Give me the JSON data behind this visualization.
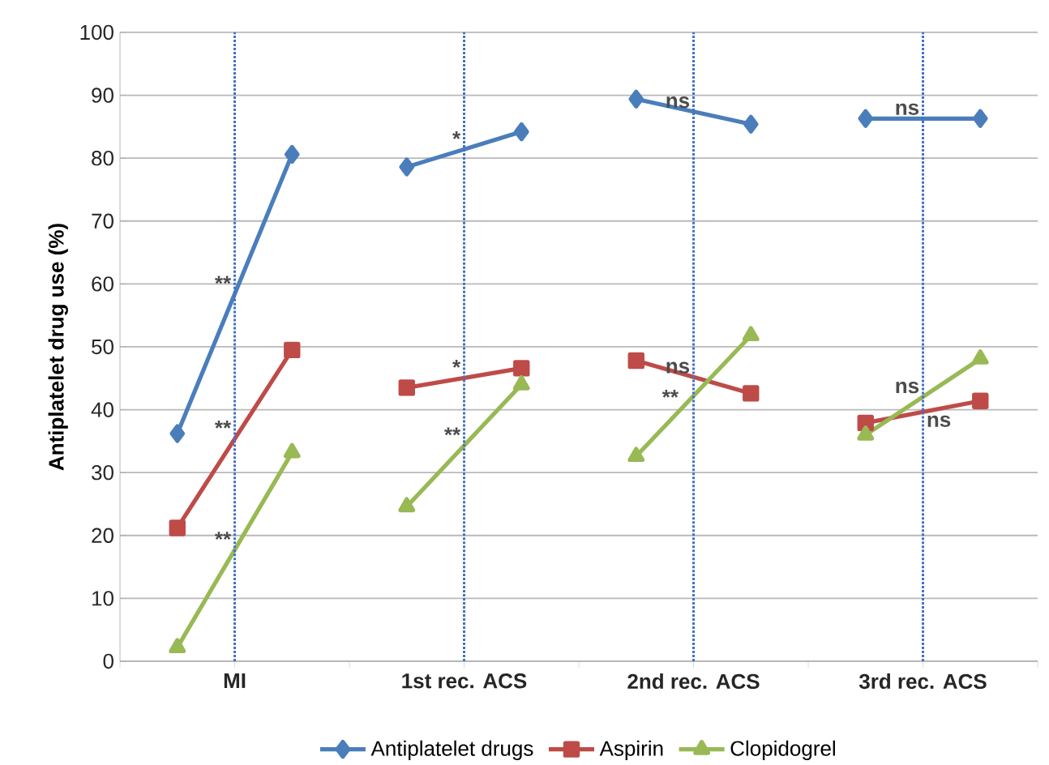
{
  "chart_data": {
    "type": "line",
    "ylabel": "Antiplatelet drug use (%)",
    "xlim": [
      -0.5,
      3.5
    ],
    "xticks": [
      {
        "value": -0.5,
        "label": null
      },
      {
        "value": 0,
        "label": "MI"
      },
      {
        "value": 0.5,
        "label": null
      },
      {
        "value": 1,
        "label": "1st rec. ACS"
      },
      {
        "value": 1.5,
        "label": null
      },
      {
        "value": 2,
        "label": "2nd rec. ACS"
      },
      {
        "value": 2.5,
        "label": null
      },
      {
        "value": 3,
        "label": "3rd rec. ACS"
      },
      {
        "value": 3.5,
        "label": null
      }
    ],
    "ylim": [
      0,
      100
    ],
    "yticks": [
      0,
      10,
      20,
      30,
      40,
      50,
      60,
      70,
      80,
      90,
      100
    ],
    "grid": "y",
    "legend": "bottom",
    "line_style": "solid",
    "series": [
      {
        "name": "Antiplatelet drugs",
        "color": "#4a7ebb",
        "marker": "diamond",
        "x": [
          -0.25,
          0.25,
          0.5,
          0.75,
          1.25,
          1.5,
          1.75,
          2.25,
          2.5,
          2.75,
          3.25
        ],
        "values": [
          36.2,
          80.6,
          null,
          78.6,
          84.2,
          null,
          89.4,
          85.4,
          null,
          86.3,
          86.3
        ]
      },
      {
        "name": "Aspirin",
        "color": "#be4b48",
        "marker": "square",
        "x": [
          -0.25,
          0.25,
          0.5,
          0.75,
          1.25,
          1.5,
          1.75,
          2.25,
          2.5,
          2.75,
          3.25
        ],
        "values": [
          21.2,
          49.5,
          null,
          43.5,
          46.6,
          null,
          47.8,
          42.6,
          null,
          37.9,
          41.4
        ]
      },
      {
        "name": "Clopidogrel",
        "color": "#98b954",
        "marker": "triangle",
        "x": [
          -0.25,
          0.25,
          0.5,
          0.75,
          1.25,
          1.5,
          1.75,
          2.25,
          2.5,
          2.75,
          3.25
        ],
        "values": [
          2.2,
          33.2,
          null,
          24.6,
          44.0,
          null,
          32.6,
          51.8,
          null,
          36.0,
          48.1
        ]
      }
    ],
    "ref_lines": [
      {
        "axis": "x",
        "value": 0,
        "color": "#4472c4",
        "line_style": "dotted"
      },
      {
        "axis": "x",
        "value": 1,
        "color": "#4472c4",
        "line_style": "dotted"
      },
      {
        "axis": "x",
        "value": 2,
        "color": "#4472c4",
        "line_style": "dotted"
      },
      {
        "axis": "x",
        "value": 3,
        "color": "#4472c4",
        "line_style": "dotted"
      }
    ],
    "annotations": [
      {
        "text": "**",
        "x": 0,
        "y": 58.4
      },
      {
        "text": "**",
        "x": 0,
        "y": 35.4
      },
      {
        "text": "**",
        "x": 0,
        "y": 17.7
      },
      {
        "text": "*",
        "x": 1,
        "y": 81.4
      },
      {
        "text": "*",
        "x": 1,
        "y": 45.05
      },
      {
        "text": "**",
        "x": 1,
        "y": 34.3
      },
      {
        "text": "ns",
        "x": 2,
        "y": 87.4
      },
      {
        "text": "ns",
        "x": 2,
        "y": 45.2
      },
      {
        "text": "**",
        "x": 1.95,
        "y": 40.3
      },
      {
        "text": "ns",
        "x": 3,
        "y": 86.3
      },
      {
        "text": "ns",
        "x": 3,
        "y": 42.05
      },
      {
        "text": "ns",
        "x": 3,
        "y": 39.65
      }
    ]
  }
}
